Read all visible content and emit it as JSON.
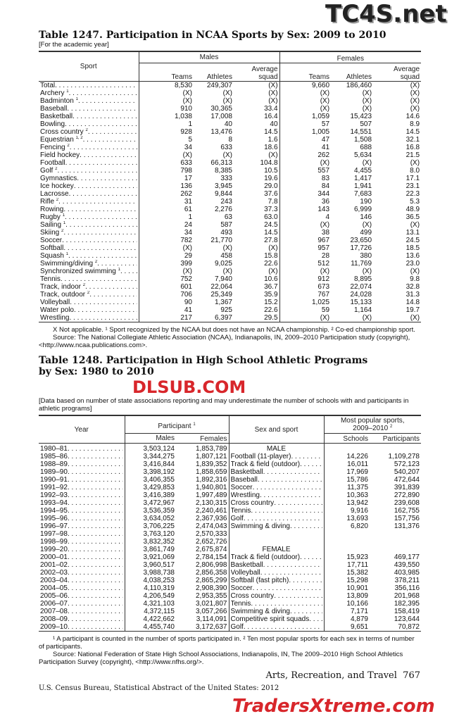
{
  "watermarks": {
    "top": "TC4S.net",
    "middle": "DLSUB.COM",
    "bottom": "TradersXtreme.com"
  },
  "t1": {
    "title": "Table 1247. Participation in NCAA Sports by Sex: 2009 to 2010",
    "note": "[For the academic year]",
    "headers": {
      "sport": "Sport",
      "males": "Males",
      "females": "Females",
      "teams": "Teams",
      "athletes": "Athletes",
      "avg1": "Average",
      "avg2": "squad"
    },
    "rows": [
      {
        "name": "Total",
        "sup": "",
        "v": [
          "8,530",
          "249,307",
          "(X)",
          "9,660",
          "186,460",
          "(X)"
        ]
      },
      {
        "name": "Archery",
        "sup": "1",
        "v": [
          "(X)",
          "(X)",
          "(X)",
          "(X)",
          "(X)",
          "(X)"
        ]
      },
      {
        "name": "Badminton",
        "sup": "1",
        "v": [
          "(X)",
          "(X)",
          "(X)",
          "(X)",
          "(X)",
          "(X)"
        ]
      },
      {
        "name": "Baseball",
        "sup": "",
        "v": [
          "910",
          "30,365",
          "33.4",
          "(X)",
          "(X)",
          "(X)"
        ]
      },
      {
        "name": "Basketball",
        "sup": "",
        "v": [
          "1,038",
          "17,008",
          "16.4",
          "1,059",
          "15,423",
          "14.6"
        ]
      },
      {
        "name": "Bowling",
        "sup": "",
        "v": [
          "1",
          "40",
          "40",
          "57",
          "507",
          "8.9"
        ]
      },
      {
        "name": "Cross country",
        "sup": "2",
        "v": [
          "928",
          "13,476",
          "14.5",
          "1,005",
          "14,551",
          "14.5"
        ]
      },
      {
        "name": "Equestrian",
        "sup": "1, 2",
        "v": [
          "5",
          "8",
          "1.6",
          "47",
          "1,508",
          "32.1"
        ]
      },
      {
        "name": "Fencing",
        "sup": "2",
        "v": [
          "34",
          "633",
          "18.6",
          "41",
          "688",
          "16.8"
        ]
      },
      {
        "name": "Field hockey",
        "sup": "",
        "v": [
          "(X)",
          "(X)",
          "(X)",
          "262",
          "5,634",
          "21.5"
        ]
      },
      {
        "name": "Football",
        "sup": "",
        "v": [
          "633",
          "66,313",
          "104.8",
          "(X)",
          "(X)",
          "(X)"
        ]
      },
      {
        "name": "Golf",
        "sup": "2",
        "v": [
          "798",
          "8,385",
          "10.5",
          "557",
          "4,455",
          "8.0"
        ]
      },
      {
        "name": "Gymnastics",
        "sup": "",
        "v": [
          "17",
          "333",
          "19.6",
          "83",
          "1,417",
          "17.1"
        ]
      },
      {
        "name": "Ice hockey",
        "sup": "",
        "v": [
          "136",
          "3,945",
          "29.0",
          "84",
          "1,941",
          "23.1"
        ]
      },
      {
        "name": "Lacrosse",
        "sup": "",
        "v": [
          "262",
          "9,844",
          "37.6",
          "344",
          "7,683",
          "22.3"
        ]
      },
      {
        "name": "Rifle",
        "sup": "2",
        "v": [
          "31",
          "243",
          "7.8",
          "36",
          "190",
          "5.3"
        ]
      },
      {
        "name": "Rowing",
        "sup": "",
        "v": [
          "61",
          "2,276",
          "37.3",
          "143",
          "6,999",
          "48.9"
        ]
      },
      {
        "name": "Rugby",
        "sup": "1",
        "v": [
          "1",
          "63",
          "63.0",
          "4",
          "146",
          "36.5"
        ]
      },
      {
        "name": "Sailing",
        "sup": "1",
        "v": [
          "24",
          "587",
          "24.5",
          "(X)",
          "(X)",
          "(X)"
        ]
      },
      {
        "name": "Skiing",
        "sup": "2",
        "v": [
          "34",
          "493",
          "14.5",
          "38",
          "499",
          "13.1"
        ]
      },
      {
        "name": "Soccer",
        "sup": "",
        "v": [
          "782",
          "21,770",
          "27.8",
          "967",
          "23,650",
          "24.5"
        ]
      },
      {
        "name": "Softball",
        "sup": "",
        "v": [
          "(X)",
          "(X)",
          "(X)",
          "957",
          "17,726",
          "18.5"
        ]
      },
      {
        "name": "Squash",
        "sup": "1",
        "v": [
          "29",
          "458",
          "15.8",
          "28",
          "380",
          "13.6"
        ]
      },
      {
        "name": "Swimming/diving",
        "sup": "2",
        "v": [
          "399",
          "9,025",
          "22.6",
          "512",
          "11,769",
          "23.0"
        ]
      },
      {
        "name": "Synchronized swimming",
        "sup": "1",
        "v": [
          "(X)",
          "(X)",
          "(X)",
          "(X)",
          "(X)",
          "(X)"
        ]
      },
      {
        "name": "Tennis",
        "sup": "",
        "v": [
          "752",
          "7,940",
          "10.6",
          "912",
          "8,895",
          "9.8"
        ]
      },
      {
        "name": "Track, indoor",
        "sup": "2",
        "v": [
          "601",
          "22,064",
          "36.7",
          "673",
          "22,074",
          "32.8"
        ]
      },
      {
        "name": "Track, outdoor",
        "sup": "2",
        "v": [
          "706",
          "25,349",
          "35.9",
          "767",
          "24,028",
          "31.3"
        ]
      },
      {
        "name": "Volleyball",
        "sup": "",
        "v": [
          "90",
          "1,367",
          "15.2",
          "1,025",
          "15,133",
          "14.8"
        ]
      },
      {
        "name": "Water polo",
        "sup": "",
        "v": [
          "41",
          "925",
          "22.6",
          "59",
          "1,164",
          "19.7"
        ]
      },
      {
        "name": "Wrestling",
        "sup": "",
        "v": [
          "217",
          "6,397",
          "29.5",
          "(X)",
          "(X)",
          "(X)"
        ]
      }
    ],
    "footnote": "X Not applicable. ¹ Sport recognized by the NCAA but does not have an NCAA championship. ² Co-ed championship sport.",
    "source": "Source: The National Collegiate Athletic Association (NCAA), Indianapolis, IN, 2009–2010 Participation study (copyright), <http://www.ncaa.publications.com>."
  },
  "t2": {
    "title": "Table 1248. Participation in High School Athletic Programs by Sex: 1980 to 2010",
    "note": "[Data based on number of state associations reporting and may underestimate the number of schools with and participants in athletic programs]",
    "headers": {
      "year": "Year",
      "participant": "Participant",
      "participant_sup": "1",
      "males": "Males",
      "females": "Females",
      "sexsport": "Sex and sport",
      "popular": "Most popular sports, 2009–2010",
      "popular_sup": "2",
      "schools": "Schools",
      "participants": "Participants"
    },
    "years": [
      [
        "1980–81",
        "3,503,124",
        "1,853,789"
      ],
      [
        "1985–86",
        "3,344,275",
        "1,807,121"
      ],
      [
        "1988–89",
        "3,416,844",
        "1,839,352"
      ],
      [
        "1989–90",
        "3,398,192",
        "1,858,659"
      ],
      [
        "1990–91",
        "3,406,355",
        "1,892,316"
      ],
      [
        "1991–92",
        "3,429,853",
        "1,940,801"
      ],
      [
        "1992–93",
        "3,416,389",
        "1,997,489"
      ],
      [
        "1993–94",
        "3,472,967",
        "2,130,315"
      ],
      [
        "1994–95",
        "3,536,359",
        "2,240,461"
      ],
      [
        "1995–96",
        "3,634,052",
        "2,367,936"
      ],
      [
        "1996–97",
        "3,706,225",
        "2,474,043"
      ],
      [
        "1997–98",
        "3,763,120",
        "2,570,333"
      ],
      [
        "1998–99",
        "3,832,352",
        "2,652,726"
      ],
      [
        "1999–20",
        "3,861,749",
        "2,675,874"
      ],
      [
        "2000–01",
        "3,921,069",
        "2,784,154"
      ],
      [
        "2001–02",
        "3,960,517",
        "2,806,998"
      ],
      [
        "2002–03",
        "3,988,738",
        "2,856,358"
      ],
      [
        "2003–04",
        "4,038,253",
        "2,865,299"
      ],
      [
        "2004–05",
        "4,110,319",
        "2,908,390"
      ],
      [
        "2005–06",
        "4,206,549",
        "2,953,355"
      ],
      [
        "2006–07",
        "4,321,103",
        "3,021,807"
      ],
      [
        "2007–08",
        "4,372,115",
        "3,057,266"
      ],
      [
        "2008–09",
        "4,422,662",
        "3,114,091"
      ],
      [
        "2009–10",
        "4,455,740",
        "3,172,637"
      ]
    ],
    "sports": [
      [
        "MALE",
        "",
        ""
      ],
      [
        "Football (11-player)",
        "14,226",
        "1,109,278"
      ],
      [
        "Track & field (outdoor)",
        "16,011",
        "572,123"
      ],
      [
        "Basketball",
        "17,969",
        "540,207"
      ],
      [
        "Baseball",
        "15,786",
        "472,644"
      ],
      [
        "Soccer",
        "11,375",
        "391,839"
      ],
      [
        "Wrestling",
        "10,363",
        "272,890"
      ],
      [
        "Cross country",
        "13,942",
        "239,608"
      ],
      [
        "Tennis",
        "9,916",
        "162,755"
      ],
      [
        "Golf",
        "13,693",
        "157,756"
      ],
      [
        "Swimming & diving",
        "6,820",
        "131,376"
      ],
      [
        "",
        "",
        ""
      ],
      [
        "",
        "",
        ""
      ],
      [
        "FEMALE",
        "",
        ""
      ],
      [
        "Track & field (outdoor)",
        "15,923",
        "469,177"
      ],
      [
        "Basketball",
        "17,711",
        "439,550"
      ],
      [
        "Volleyball",
        "15,382",
        "403,985"
      ],
      [
        "Softball (fast pitch)",
        "15,298",
        "378,211"
      ],
      [
        "Soccer",
        "10,901",
        "356,116"
      ],
      [
        "Cross country",
        "13,809",
        "201,968"
      ],
      [
        "Tennis",
        "10,166",
        "182,395"
      ],
      [
        "Swimming & diving",
        "7,171",
        "158,419"
      ],
      [
        "Competitive spirit squads",
        "4,879",
        "123,644"
      ],
      [
        "Golf",
        "9,651",
        "70,872"
      ]
    ],
    "footnote": "¹ A participant is counted in the number of sports participated in. ² Ten most popular sports for each sex in terms of number of participants.",
    "source": "Source: National Federation of State High School Associations, Indianapolis, IN, The 2009–2010 High School Athletics Participation Survey (copyright), <http://www.nfhs.org/>."
  },
  "footer": {
    "section": "Arts, Recreation, and Travel",
    "page": "767",
    "publisher": "U.S. Census Bureau, Statistical Abstract of the United States: 2012"
  }
}
